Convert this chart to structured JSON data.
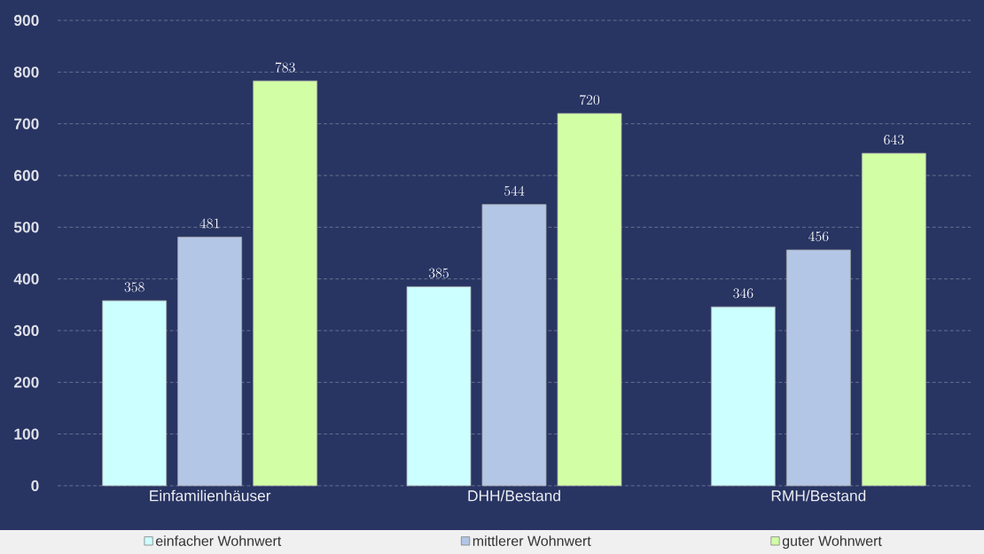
{
  "chart_data": {
    "type": "bar",
    "categories": [
      "Einfamilienhäuser",
      "DHH/Bestand",
      "RMH/Bestand"
    ],
    "series": [
      {
        "name": "einfacher Wohnwert",
        "color": "#ccffff",
        "values": [
          358,
          385,
          346
        ]
      },
      {
        "name": "mittlerer Wohnwert",
        "color": "#b3c6e6",
        "values": [
          481,
          544,
          456
        ]
      },
      {
        "name": "guter Wohnwert",
        "color": "#d2ffa5",
        "values": [
          783,
          720,
          643
        ]
      }
    ],
    "ylim": [
      0,
      900
    ],
    "yticks": [
      0,
      100,
      200,
      300,
      400,
      500,
      600,
      700,
      800,
      900
    ],
    "grid": "y",
    "legend": "bottom",
    "data_labels": true
  }
}
